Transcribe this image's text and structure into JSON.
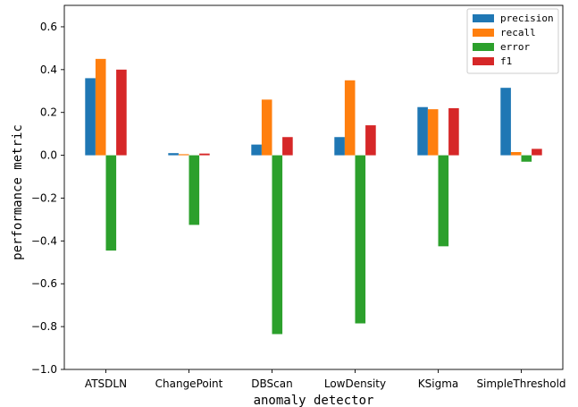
{
  "chart_data": {
    "type": "bar",
    "title": "",
    "xlabel": "anomaly detector",
    "ylabel": "performance metric",
    "categories": [
      "ATSDLN",
      "ChangePoint",
      "DBScan",
      "LowDensity",
      "KSigma",
      "SimpleThreshold"
    ],
    "ylim": [
      -1.0,
      0.7
    ],
    "yticks": [
      -1.0,
      -0.8,
      -0.6,
      -0.4,
      -0.2,
      0.0,
      0.2,
      0.4,
      0.6
    ],
    "ytick_labels": [
      "−1.0",
      "−0.8",
      "−0.6",
      "−0.4",
      "−0.2",
      "0.0",
      "0.2",
      "0.4",
      "0.6"
    ],
    "grid": false,
    "legend_position": "top-right",
    "series": [
      {
        "name": "precision",
        "color": "#1f77b4",
        "values": [
          0.36,
          0.01,
          0.05,
          0.085,
          0.225,
          0.315
        ]
      },
      {
        "name": "recall",
        "color": "#ff7f0e",
        "values": [
          0.45,
          0.005,
          0.26,
          0.35,
          0.215,
          0.015
        ]
      },
      {
        "name": "error",
        "color": "#2ca02c",
        "values": [
          -0.445,
          -0.325,
          -0.835,
          -0.785,
          -0.425,
          -0.03
        ]
      },
      {
        "name": "f1",
        "color": "#d62728",
        "values": [
          0.4,
          0.008,
          0.085,
          0.14,
          0.22,
          0.03
        ]
      }
    ]
  }
}
